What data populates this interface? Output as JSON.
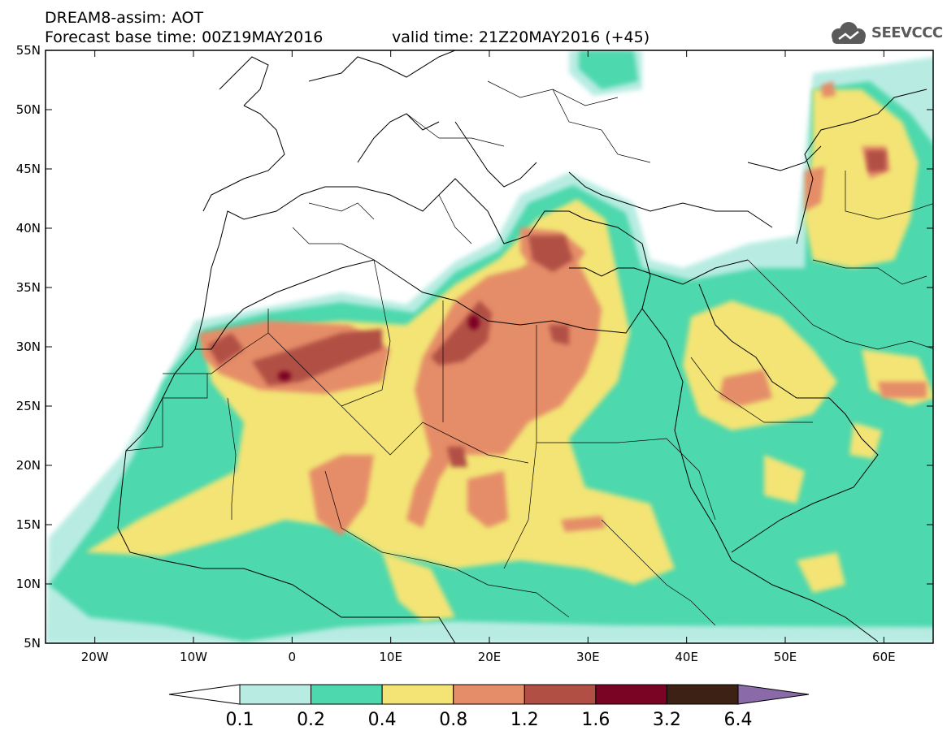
{
  "header": {
    "title": "DREAM8-assim: AOT",
    "base_time": "Forecast base time: 00Z19MAY2016",
    "valid_time": "valid time: 21Z20MAY2016 (+45)"
  },
  "logo": {
    "text": "SEEVCCC",
    "icon": "cloud-icon"
  },
  "map": {
    "lon_range": [
      -25,
      65
    ],
    "lat_range": [
      5,
      55
    ],
    "lat_ticks": [
      "5N",
      "10N",
      "15N",
      "20N",
      "25N",
      "30N",
      "35N",
      "40N",
      "45N",
      "50N",
      "55N"
    ],
    "lon_ticks": [
      "20W",
      "10W",
      "0",
      "10E",
      "20E",
      "30E",
      "40E",
      "50E",
      "60E"
    ]
  },
  "colorbar": {
    "labels": [
      "0.1",
      "0.2",
      "0.4",
      "0.8",
      "1.2",
      "1.6",
      "3.2",
      "6.4"
    ],
    "colors": [
      "#ffffff",
      "#b8ece2",
      "#4ed8ad",
      "#f3e475",
      "#e58d68",
      "#b14f44",
      "#7a0424",
      "#3d2114",
      "#8a6aa8"
    ]
  }
}
